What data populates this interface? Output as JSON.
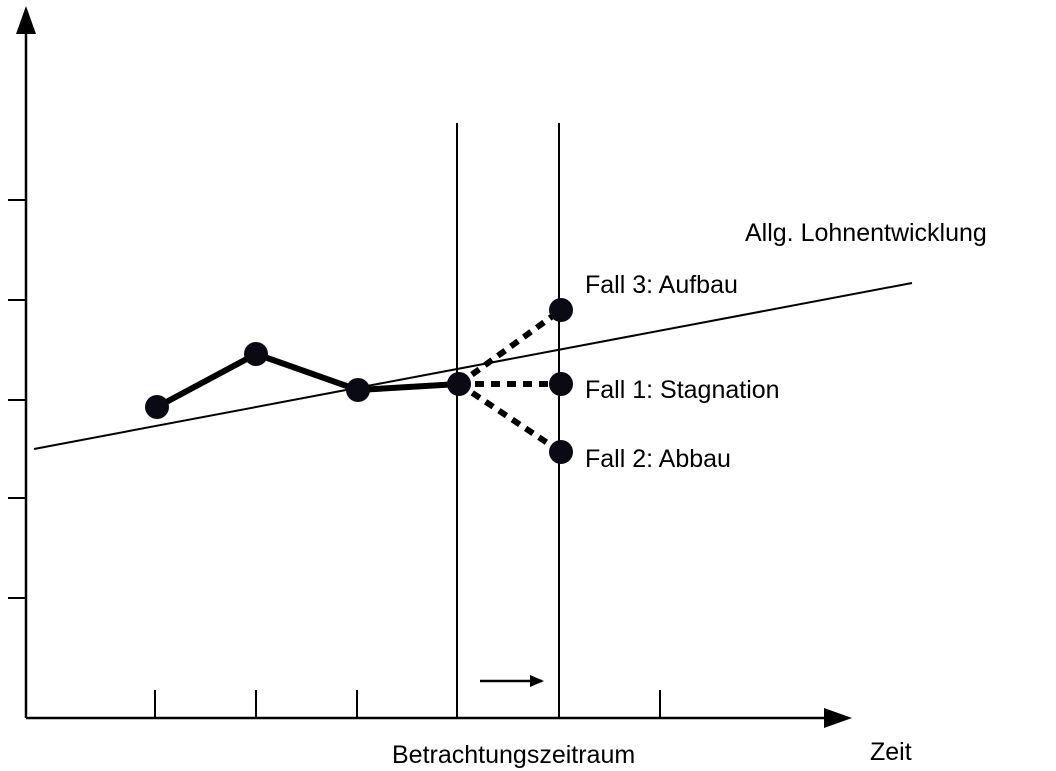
{
  "labels": {
    "trend": "Allg. Lohnentwicklung",
    "case3": "Fall 3: Aufbau",
    "case1": "Fall 1: Stagnation",
    "case2": "Fall 2: Abbau",
    "period": "Betrachtungszeitraum",
    "time": "Zeit"
  },
  "colors": {
    "stroke": "#000000",
    "marker_fill": "#0a0a14",
    "marker_highlight": "#1a2a6a"
  }
}
